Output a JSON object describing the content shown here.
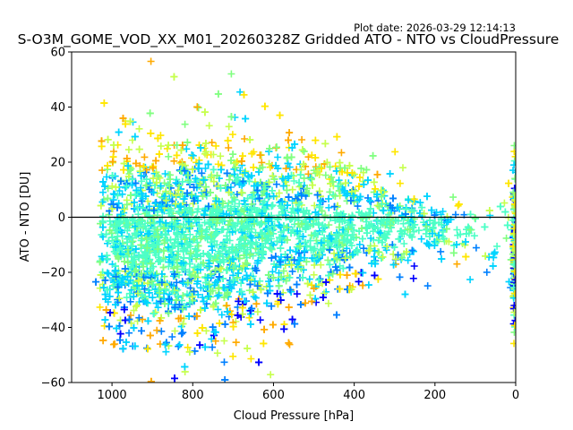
{
  "chart_data": {
    "type": "scatter",
    "title": "S-O3M_GOME_VOD_XX_M01_20260328Z Gridded ATO - NTO vs CloudPressure",
    "plot_date": "Plot date: 2026-03-29 12:14:13",
    "xlabel": "Cloud Pressure [hPa]",
    "ylabel": "ATO - NTO [DU]",
    "xlim": [
      1100,
      0
    ],
    "ylim": [
      -60,
      60
    ],
    "x_axis_inverted": true,
    "xticks": [
      1000,
      800,
      600,
      400,
      200,
      0
    ],
    "yticks": [
      -60,
      -40,
      -20,
      0,
      20,
      40,
      60
    ],
    "reference_line_y": 0,
    "marker": "+",
    "grid": false,
    "colormap": "jet",
    "palette": [
      "#0000ff",
      "#0080ff",
      "#00d4ff",
      "#4dffc6",
      "#80ff80",
      "#c6ff4d",
      "#ffe600",
      "#ffaa00"
    ],
    "envelope": [
      {
        "p": 1000,
        "mean": -8,
        "spread": 20
      },
      {
        "p": 900,
        "mean": -9,
        "spread": 22
      },
      {
        "p": 800,
        "mean": -8,
        "spread": 22
      },
      {
        "p": 700,
        "mean": -6,
        "spread": 20
      },
      {
        "p": 600,
        "mean": -5,
        "spread": 18
      },
      {
        "p": 500,
        "mean": -4,
        "spread": 16
      },
      {
        "p": 400,
        "mean": -4,
        "spread": 13
      },
      {
        "p": 300,
        "mean": -4,
        "spread": 10
      },
      {
        "p": 200,
        "mean": -5,
        "spread": 8
      },
      {
        "p": 100,
        "mean": -4,
        "spread": 6
      },
      {
        "p": 0,
        "mean": -10,
        "spread": 14
      }
    ]
  }
}
